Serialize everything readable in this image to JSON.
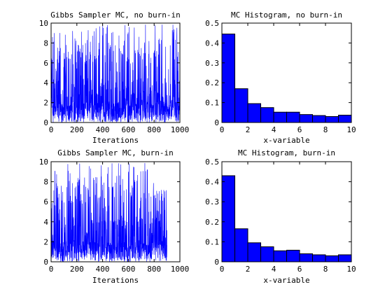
{
  "chart_data": [
    {
      "type": "line",
      "title": "Gibbs Sampler MC, no burn-in",
      "xlabel": "Iterations",
      "ylabel": "",
      "xlim": [
        0,
        1000
      ],
      "ylim": [
        0,
        10
      ],
      "xticks": [
        0,
        200,
        400,
        600,
        800,
        1000
      ],
      "yticks": [
        0,
        2,
        4,
        6,
        8,
        10
      ],
      "grid": false,
      "color": "#0000ff",
      "n_points": 1000,
      "value_range": [
        0,
        10
      ]
    },
    {
      "type": "bar",
      "title": "MC Histogram, no burn-in",
      "xlabel": "x-variable",
      "ylabel": "",
      "xlim": [
        0,
        10
      ],
      "ylim": [
        0,
        0.5
      ],
      "xticks": [
        0,
        2,
        4,
        6,
        8,
        10
      ],
      "yticks": [
        0,
        0.1,
        0.2,
        0.3,
        0.4,
        0.5
      ],
      "grid": false,
      "color": "#0000ff",
      "bin_edges": [
        0,
        1,
        2,
        3,
        4,
        5,
        6,
        7,
        8,
        9,
        10
      ],
      "values": [
        0.445,
        0.17,
        0.095,
        0.075,
        0.052,
        0.052,
        0.04,
        0.035,
        0.03,
        0.037
      ]
    },
    {
      "type": "line",
      "title": "Gibbs Sampler MC, burn-in",
      "xlabel": "Iterations",
      "ylabel": "",
      "xlim": [
        0,
        1000
      ],
      "ylim": [
        0,
        10
      ],
      "xticks": [
        0,
        200,
        400,
        600,
        800,
        1000
      ],
      "yticks": [
        0,
        2,
        4,
        6,
        8,
        10
      ],
      "grid": false,
      "color": "#0000ff",
      "n_points": 900,
      "value_range": [
        0,
        10
      ]
    },
    {
      "type": "bar",
      "title": "MC Histogram, burn-in",
      "xlabel": "x-variable",
      "ylabel": "",
      "xlim": [
        0,
        10
      ],
      "ylim": [
        0,
        0.5
      ],
      "xticks": [
        0,
        2,
        4,
        6,
        8,
        10
      ],
      "yticks": [
        0,
        0.1,
        0.2,
        0.3,
        0.4,
        0.5
      ],
      "grid": false,
      "color": "#0000ff",
      "bin_edges": [
        0,
        1,
        2,
        3,
        4,
        5,
        6,
        7,
        8,
        9,
        10
      ],
      "values": [
        0.43,
        0.165,
        0.095,
        0.075,
        0.055,
        0.058,
        0.04,
        0.035,
        0.03,
        0.035
      ]
    }
  ]
}
